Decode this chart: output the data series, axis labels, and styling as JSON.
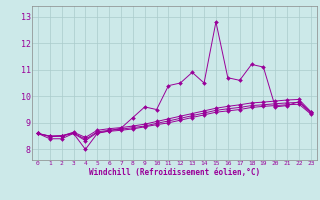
{
  "xlabel": "Windchill (Refroidissement éolien,°C)",
  "bg_color": "#cce9e9",
  "grid_color": "#aacccc",
  "line_color": "#990099",
  "xlim": [
    -0.5,
    23.5
  ],
  "ylim": [
    7.6,
    13.4
  ],
  "xticks": [
    0,
    1,
    2,
    3,
    4,
    5,
    6,
    7,
    8,
    9,
    10,
    11,
    12,
    13,
    14,
    15,
    16,
    17,
    18,
    19,
    20,
    21,
    22,
    23
  ],
  "yticks": [
    8,
    9,
    10,
    11,
    12,
    13
  ],
  "series": [
    {
      "x": [
        0,
        1,
        2,
        3,
        4,
        5,
        6,
        7,
        8,
        9,
        10,
        11,
        12,
        13,
        14,
        15,
        16,
        17,
        18,
        19,
        20,
        21,
        22,
        23
      ],
      "y": [
        8.6,
        8.4,
        8.4,
        8.6,
        8.0,
        8.6,
        8.7,
        8.8,
        9.2,
        9.6,
        9.5,
        10.4,
        10.5,
        10.9,
        10.5,
        12.8,
        10.7,
        10.6,
        11.2,
        11.1,
        9.6,
        9.65,
        9.8,
        9.4
      ]
    },
    {
      "x": [
        0,
        1,
        2,
        3,
        4,
        5,
        6,
        7,
        8,
        9,
        10,
        11,
        12,
        13,
        14,
        15,
        16,
        17,
        18,
        19,
        20,
        21,
        22,
        23
      ],
      "y": [
        8.6,
        8.5,
        8.5,
        8.65,
        8.45,
        8.72,
        8.78,
        8.82,
        8.88,
        8.95,
        9.05,
        9.15,
        9.25,
        9.35,
        9.45,
        9.55,
        9.62,
        9.68,
        9.75,
        9.78,
        9.82,
        9.86,
        9.88,
        9.42
      ]
    },
    {
      "x": [
        0,
        1,
        2,
        3,
        4,
        5,
        6,
        7,
        8,
        9,
        10,
        11,
        12,
        13,
        14,
        15,
        16,
        17,
        18,
        19,
        20,
        21,
        22,
        23
      ],
      "y": [
        8.6,
        8.5,
        8.52,
        8.62,
        8.38,
        8.66,
        8.72,
        8.76,
        8.82,
        8.88,
        8.98,
        9.07,
        9.17,
        9.27,
        9.37,
        9.47,
        9.53,
        9.58,
        9.65,
        9.68,
        9.72,
        9.75,
        9.77,
        9.37
      ]
    },
    {
      "x": [
        0,
        1,
        2,
        3,
        4,
        5,
        6,
        7,
        8,
        9,
        10,
        11,
        12,
        13,
        14,
        15,
        16,
        17,
        18,
        19,
        20,
        21,
        22,
        23
      ],
      "y": [
        8.6,
        8.48,
        8.5,
        8.6,
        8.33,
        8.63,
        8.68,
        8.72,
        8.77,
        8.85,
        8.93,
        9.0,
        9.1,
        9.2,
        9.3,
        9.4,
        9.45,
        9.5,
        9.58,
        9.62,
        9.65,
        9.68,
        9.7,
        9.33
      ]
    }
  ]
}
